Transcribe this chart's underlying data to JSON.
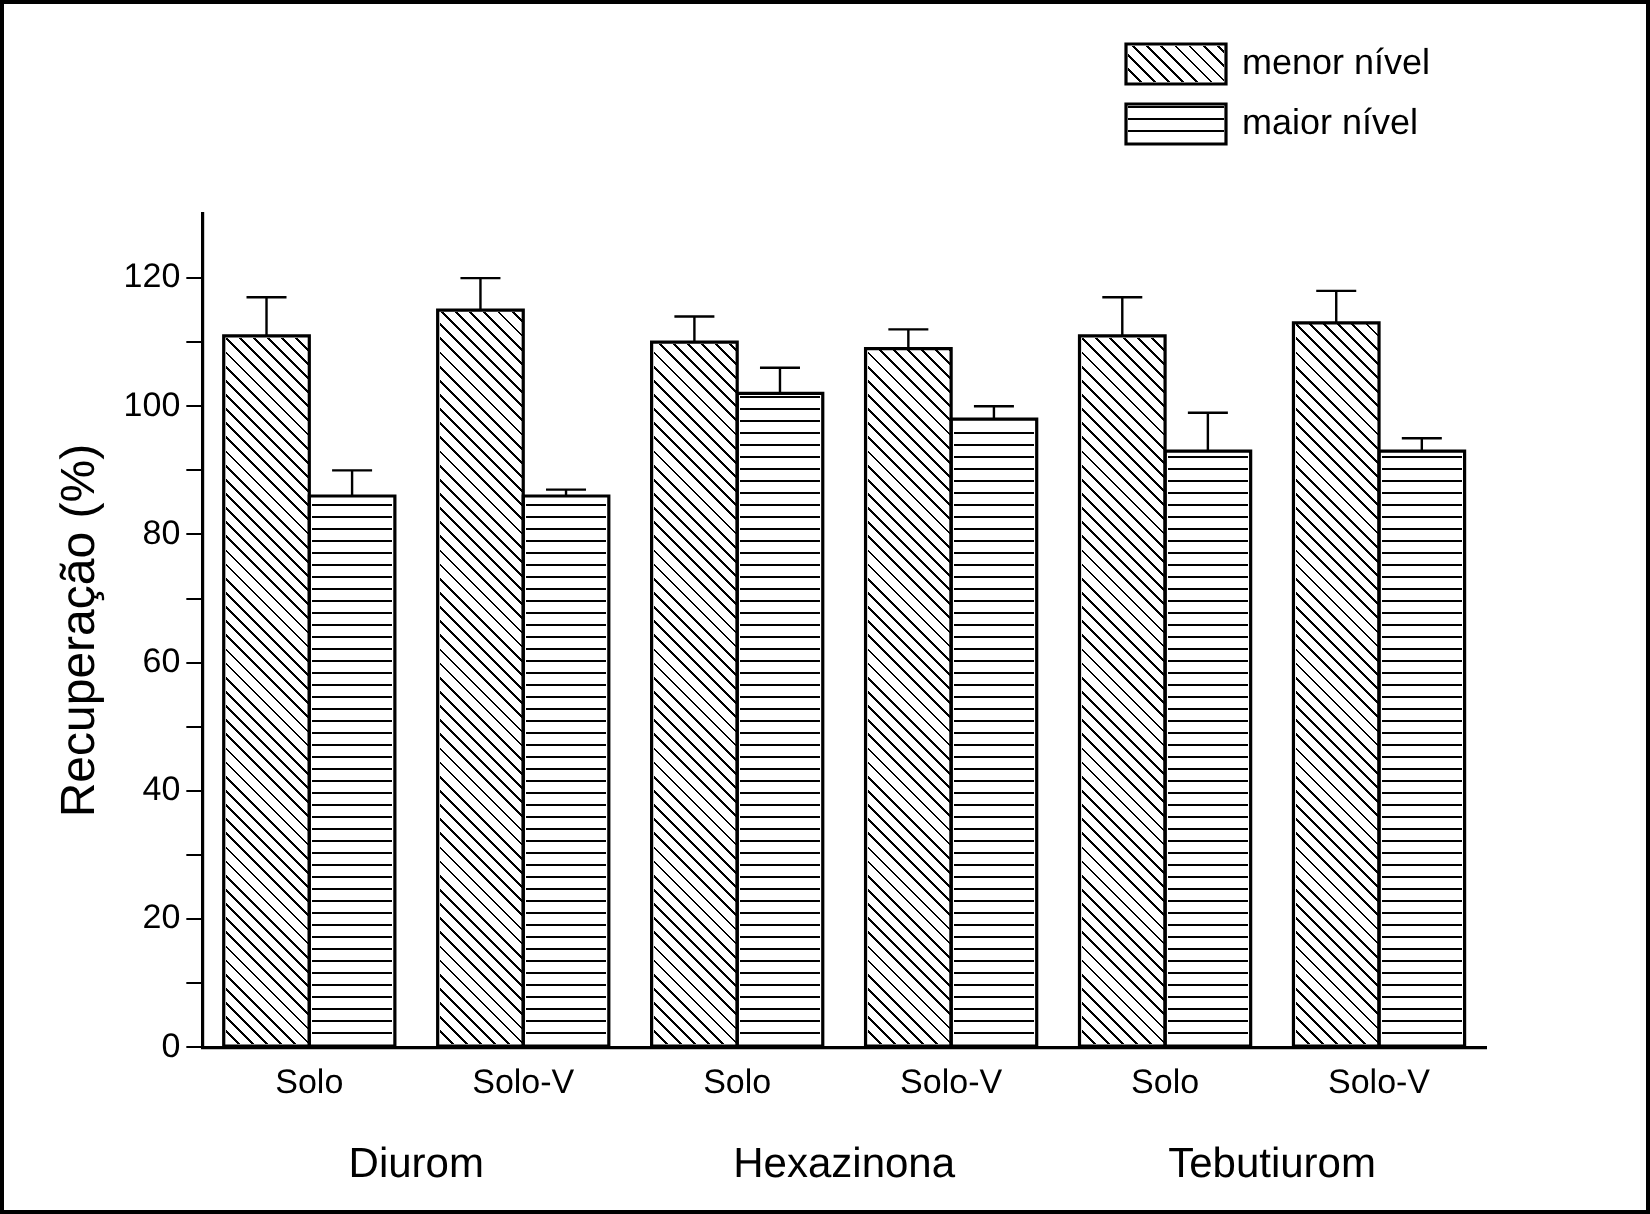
{
  "chart_data": {
    "type": "bar",
    "categories": [
      "Solo",
      "Solo-V",
      "Solo",
      "Solo-V",
      "Solo",
      "Solo-V"
    ],
    "series": [
      {
        "name": "menor nível",
        "color": "#000000",
        "values": [
          111,
          115,
          110,
          109,
          111,
          113
        ],
        "errors": [
          [
            111,
            117
          ],
          [
            115,
            120
          ],
          [
            110,
            114
          ],
          [
            109,
            112
          ],
          [
            111,
            117
          ],
          [
            113,
            118
          ]
        ]
      },
      {
        "name": "maior nível",
        "color": "#000000",
        "values": [
          86,
          86,
          102,
          98,
          93,
          93
        ],
        "errors": [
          [
            86,
            90
          ],
          [
            86,
            87
          ],
          [
            102,
            106
          ],
          [
            98,
            100
          ],
          [
            93,
            99
          ],
          [
            93,
            95
          ]
        ]
      }
    ],
    "annotations": [
      "Diurom",
      "Hexazinona",
      "Tebutiurom"
    ],
    "ylabel": "Recuperação (%)",
    "ylim": [
      0,
      130
    ],
    "yticks": [
      0,
      {
        "value": 10,
        "label": null
      },
      20,
      {
        "value": 30,
        "label": null
      },
      40,
      {
        "value": 50,
        "label": null
      },
      60,
      {
        "value": 70,
        "label": null
      },
      80,
      {
        "value": 90,
        "label": null
      },
      100,
      {
        "value": 110,
        "label": null
      },
      120
    ],
    "grid": false,
    "legend": "top right"
  }
}
